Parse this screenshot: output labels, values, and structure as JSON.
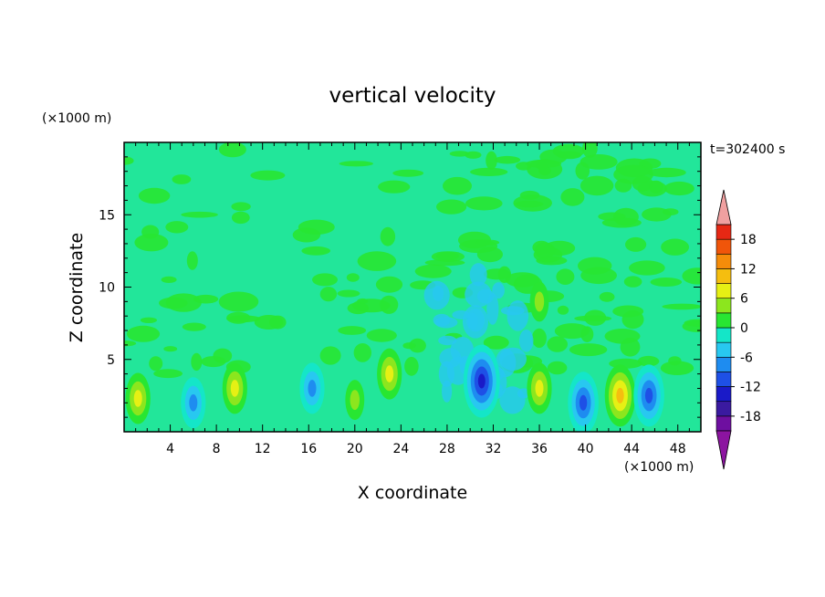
{
  "chart_data": {
    "type": "heatmap",
    "title": "vertical velocity",
    "xlabel": "X coordinate",
    "ylabel": "Z coordinate",
    "x_unit": "(×1000 m)",
    "z_unit": "(×1000 m)",
    "time_label": "t=302400 s",
    "xlim": [
      0,
      50
    ],
    "zlim": [
      0,
      20
    ],
    "x_ticks": [
      4,
      8,
      12,
      16,
      20,
      24,
      28,
      32,
      36,
      40,
      44,
      48
    ],
    "x_tick_labels": [
      "4",
      "8",
      "12",
      "16",
      "20",
      "24",
      "28",
      "32",
      "36",
      "40",
      "44",
      "48"
    ],
    "z_ticks": [
      5,
      10,
      15
    ],
    "z_tick_labels": [
      "5",
      "10",
      "15"
    ],
    "colorbar": {
      "levels": [
        -21,
        -18,
        -15,
        -12,
        -9,
        -6,
        -3,
        0,
        3,
        6,
        9,
        12,
        15,
        18,
        21
      ],
      "tick_labels": [
        "18",
        "12",
        "6",
        "0",
        "-6",
        "-12",
        "-18"
      ],
      "colors": [
        "#6e0fa0",
        "#3a1aa0",
        "#1a1ac8",
        "#1e50e6",
        "#1e8cf0",
        "#28c8f0",
        "#14e6c8",
        "#28e632",
        "#8ce61e",
        "#e6f014",
        "#f5be0f",
        "#f58c0a",
        "#f0550a",
        "#e62814"
      ],
      "under_color": "#8c14a0",
      "over_color": "#f0a0a0"
    },
    "features": [
      {
        "x": 1.2,
        "z": 2.3,
        "value": 9
      },
      {
        "x": 6.0,
        "z": 2.0,
        "value": -7
      },
      {
        "x": 9.6,
        "z": 3.0,
        "value": 8
      },
      {
        "x": 16.3,
        "z": 3.0,
        "value": -8
      },
      {
        "x": 20.0,
        "z": 2.2,
        "value": 6
      },
      {
        "x": 23.0,
        "z": 4.0,
        "value": 7
      },
      {
        "x": 31.0,
        "z": 3.5,
        "value": -14
      },
      {
        "x": 36.0,
        "z": 3.0,
        "value": 7
      },
      {
        "x": 36.0,
        "z": 9.0,
        "value": 4
      },
      {
        "x": 39.8,
        "z": 2.0,
        "value": -11
      },
      {
        "x": 43.0,
        "z": 2.5,
        "value": 10
      },
      {
        "x": 45.5,
        "z": 2.5,
        "value": -11
      }
    ]
  }
}
